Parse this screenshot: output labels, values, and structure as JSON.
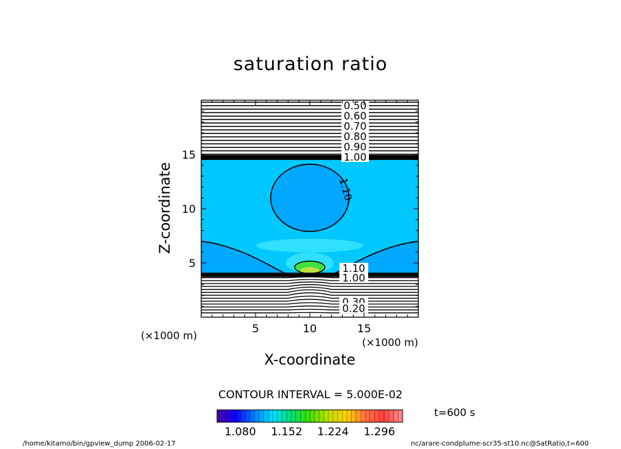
{
  "chart_data": {
    "type": "heatmap",
    "title": "saturation ratio",
    "xlabel": "X-coordinate",
    "ylabel": "Z-coordinate",
    "x_unit_note": "(×1000 m)",
    "xlim": [
      0,
      20
    ],
    "ylim": [
      0,
      20
    ],
    "x_ticks": [
      5,
      10,
      15
    ],
    "y_ticks": [
      5,
      10,
      15
    ],
    "contour_interval_text": "CONTOUR INTERVAL = 5.000E-02",
    "contour_labels_upper": [
      "0.50",
      "0.60",
      "0.70",
      "0.80",
      "0.90",
      "1.00"
    ],
    "contour_labels_lower": [
      "1.10",
      "1.00",
      "0.30",
      "0.20"
    ],
    "contour_labels_blob": [
      "1.10"
    ],
    "colorbar": {
      "ticks": [
        "1.080",
        "1.152",
        "1.224",
        "1.296"
      ],
      "range": [
        1.044,
        1.332
      ],
      "colors": [
        "#4a00a8",
        "#1000ff",
        "#0080ff",
        "#00e0ff",
        "#00e070",
        "#40e000",
        "#c0e000",
        "#ffd000",
        "#ff7040",
        "#ff4040",
        "#ff9090"
      ]
    },
    "fill_colors": {
      "background": "#00c8ff",
      "darker": "#00a8ff",
      "lighter": "#30e0ff",
      "green": "#40e040",
      "upper_region": "#ffffff"
    }
  },
  "annotations": {
    "time": "t=600 s",
    "footer_left": "/home/kitamo/bin/gpview_dump  2006-02-17",
    "footer_right": "nc/arare-condplume-scr35-st10.nc@SatRatio,t=600"
  }
}
